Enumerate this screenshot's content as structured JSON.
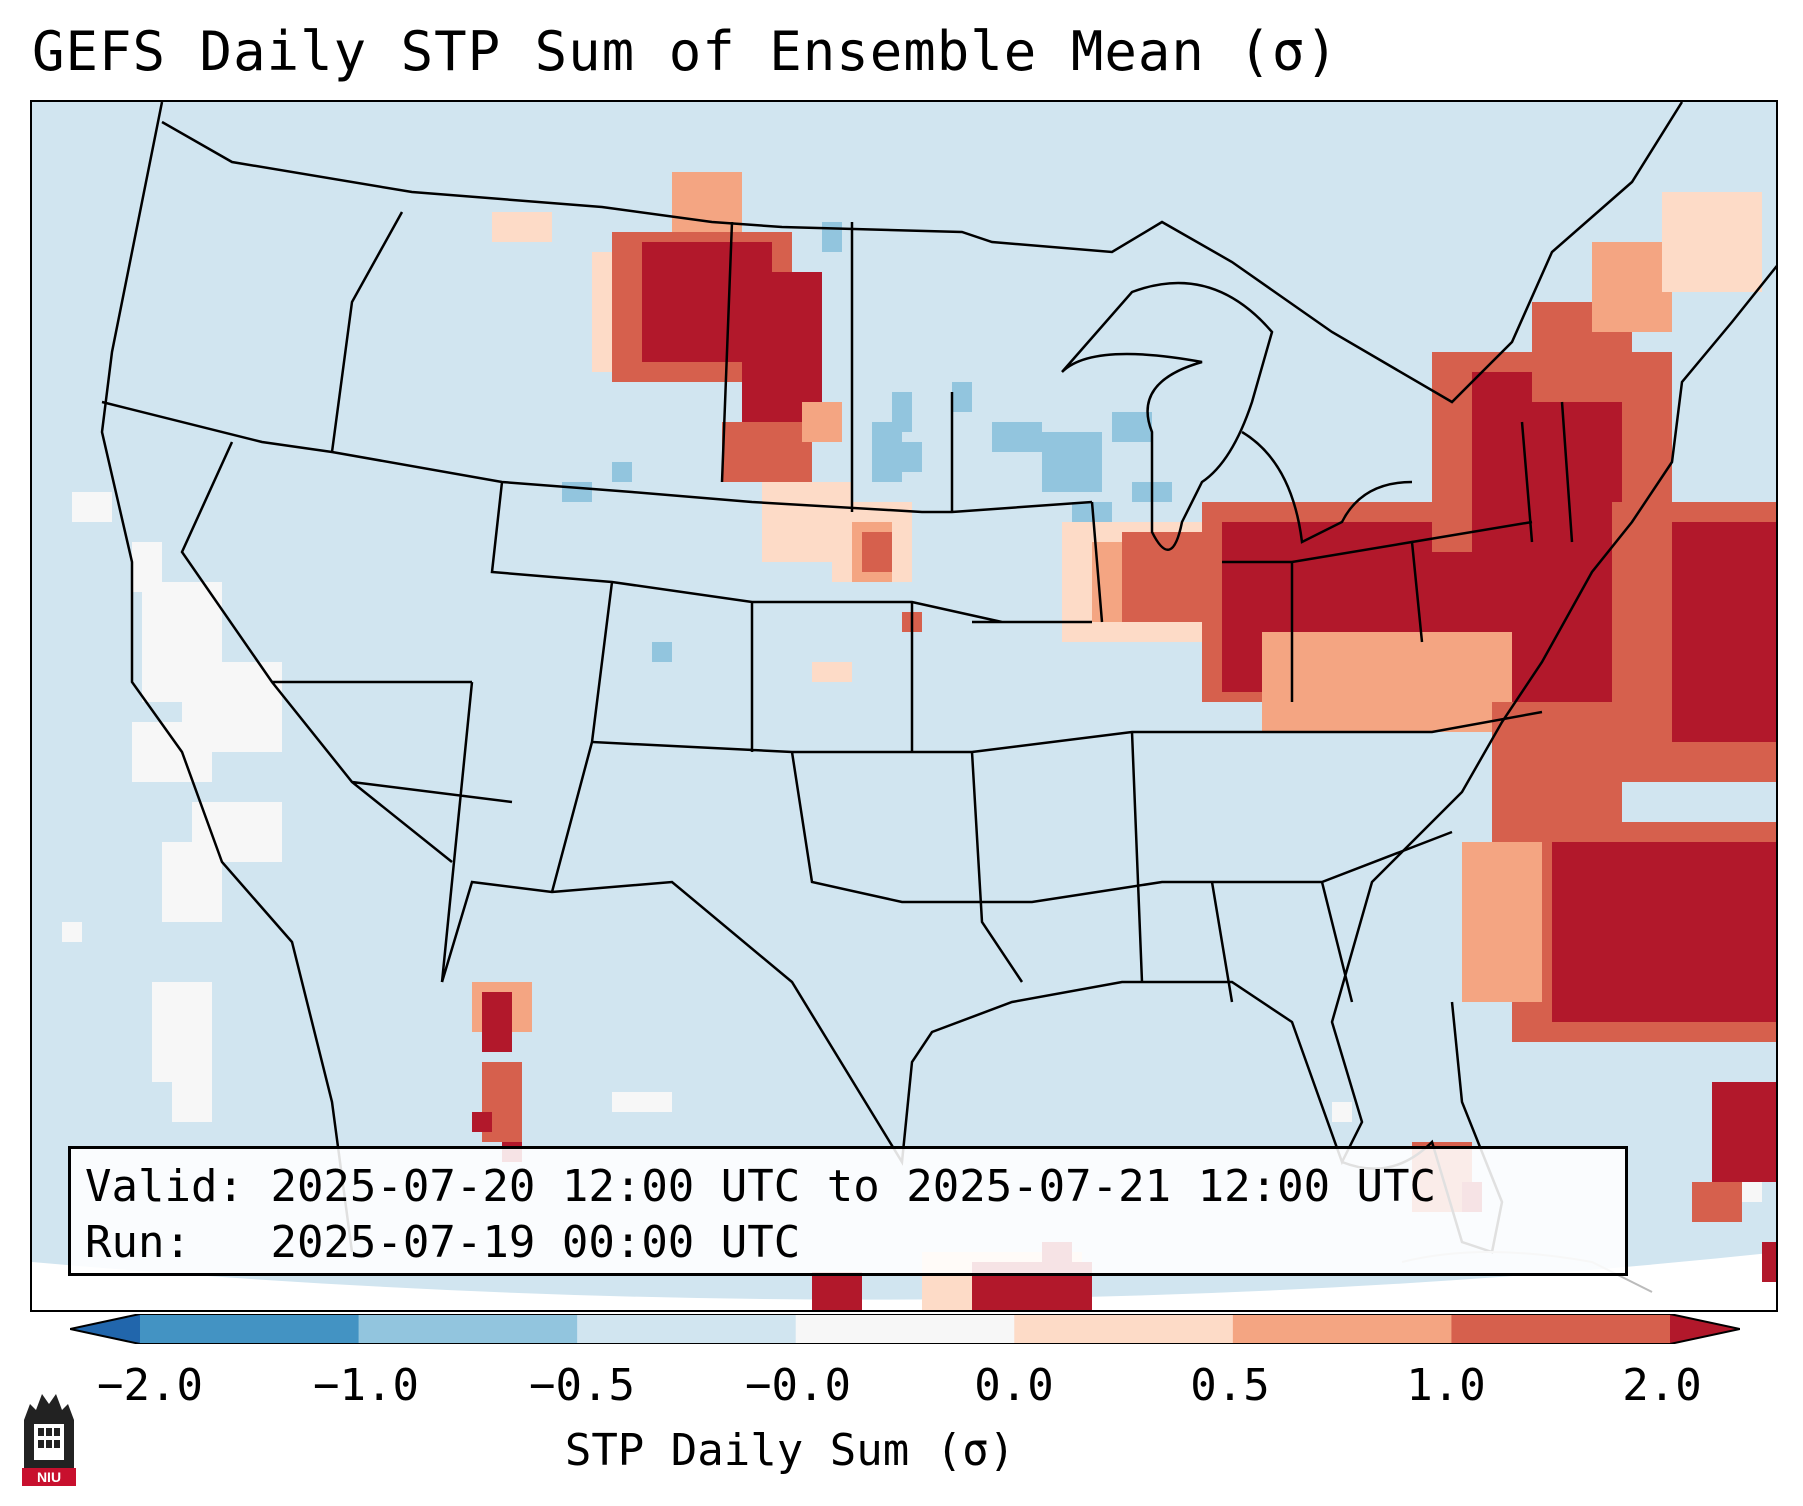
{
  "title": "GEFS Daily STP Sum of Ensemble Mean (σ)",
  "info": {
    "valid_label": "Valid:",
    "valid_value": "2025-07-20 12:00 UTC to 2025-07-21 12:00 UTC",
    "run_label": "Run:",
    "run_value": "2025-07-19 00:00 UTC"
  },
  "colorbar": {
    "label": "STP Daily Sum (σ)",
    "ticks": [
      "−2.0",
      "−1.0",
      "−0.5",
      "−0.0",
      "0.0",
      "0.5",
      "1.0",
      "2.0"
    ],
    "bin_colors": [
      "#2166ac",
      "#4393c3",
      "#92c5de",
      "#d1e5f0",
      "#f7f7f7",
      "#fddbc7",
      "#f4a582",
      "#d6604d",
      "#b2182b"
    ],
    "extend": "both"
  },
  "map": {
    "domain": "Contiguous United States",
    "background_color": "#d1e5f0",
    "highlighted_regions": [
      {
        "area": "Northern Plains (MT/ND/SD)",
        "sigma_max": 2.0
      },
      {
        "area": "Ohio Valley / Mid-Atlantic / Northeast",
        "sigma_max": 2.0
      },
      {
        "area": "Western Atlantic offshore",
        "sigma_max": 2.0
      },
      {
        "area": "Upper Midwest (WI)",
        "sigma_min": -1.0
      }
    ]
  },
  "logo": {
    "text": "NIU"
  }
}
